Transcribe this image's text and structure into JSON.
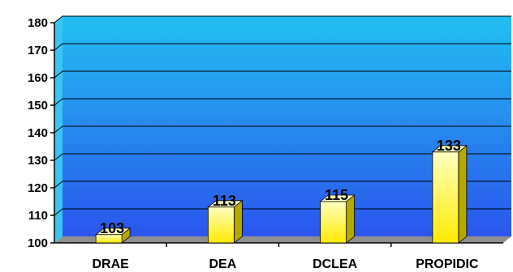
{
  "chart_data": {
    "type": "bar",
    "categories": [
      "DRAE",
      "DEA",
      "DCLEA",
      "PROPIDIC"
    ],
    "values": [
      103,
      113,
      115,
      133
    ],
    "data_labels": [
      "103",
      "113",
      "115",
      "133"
    ],
    "title": "",
    "xlabel": "",
    "ylabel": "",
    "ylim": [
      100,
      180
    ],
    "yticks": [
      100,
      110,
      120,
      130,
      140,
      150,
      160,
      170,
      180
    ],
    "grid": true,
    "bar_style": "3d-yellow-gradient",
    "legend": "none"
  },
  "colors": {
    "plot_background_top": "#22bff0",
    "plot_background_bottom": "#2a55ee",
    "floor": "#8f8f8f",
    "bar_front_top": "#ffffc0",
    "bar_front_bottom": "#ffea00",
    "bar_side": "#b5a800",
    "gridline": "#000000"
  }
}
